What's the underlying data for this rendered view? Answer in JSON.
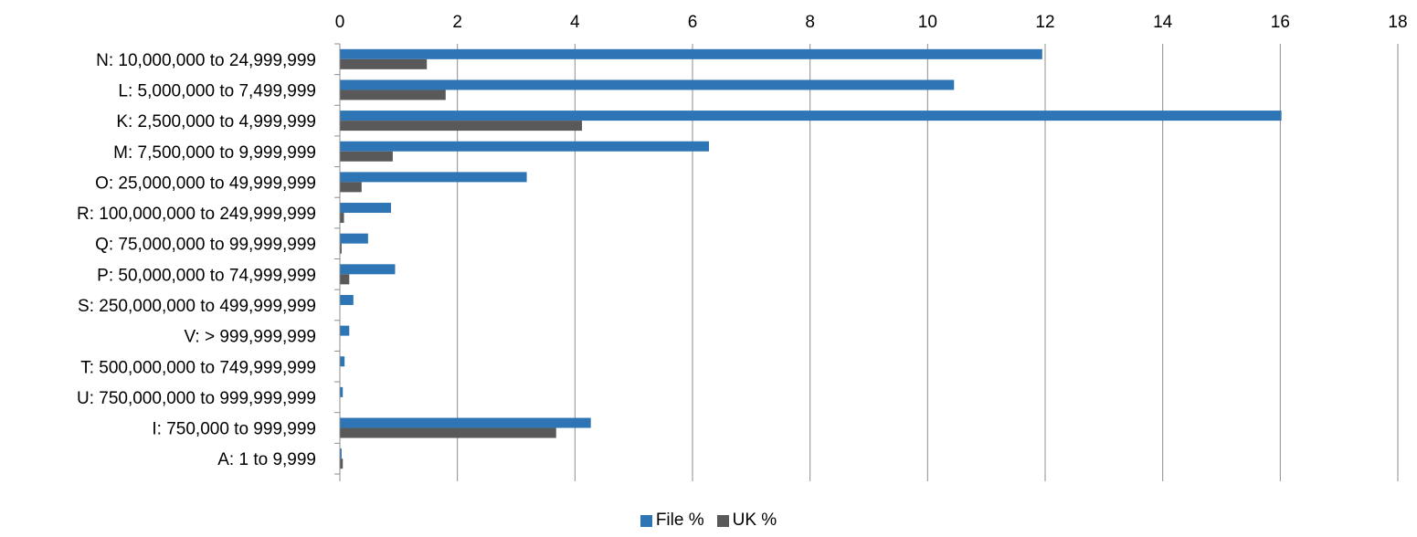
{
  "chart_data": {
    "type": "bar",
    "orientation": "horizontal",
    "title": "",
    "xlabel": "",
    "ylabel": "",
    "xlim": [
      0,
      18
    ],
    "x_ticks": [
      "0",
      "2",
      "4",
      "6",
      "8",
      "10",
      "12",
      "14",
      "16",
      "18"
    ],
    "x_axis_position": "top",
    "grid": true,
    "legend_position": "bottom",
    "categories": [
      "N: 10,000,000 to 24,999,999",
      "L: 5,000,000 to 7,499,999",
      "K: 2,500,000 to 4,999,999",
      "M: 7,500,000 to 9,999,999",
      "O: 25,000,000 to 49,999,999",
      "R: 100,000,000 to 249,999,999",
      "Q: 75,000,000 to 99,999,999",
      "P: 50,000,000 to 74,999,999",
      "S: 250,000,000 to 499,999,999",
      "V: > 999,999,999",
      "T: 500,000,000 to 749,999,999",
      "U: 750,000,000 to 999,999,999",
      "I: 750,000 to 999,999",
      "A: 1 to 9,999"
    ],
    "series": [
      {
        "name": "File %",
        "color": "#2e75b6",
        "values": [
          11.95,
          10.45,
          16.02,
          6.28,
          3.18,
          0.87,
          0.48,
          0.94,
          0.23,
          0.16,
          0.08,
          0.05,
          4.27,
          0.03
        ]
      },
      {
        "name": "UK %",
        "color": "#595959",
        "values": [
          1.48,
          1.8,
          4.12,
          0.9,
          0.37,
          0.07,
          0.03,
          0.16,
          0.0,
          0.0,
          0.0,
          0.0,
          3.68,
          0.05
        ]
      }
    ]
  }
}
